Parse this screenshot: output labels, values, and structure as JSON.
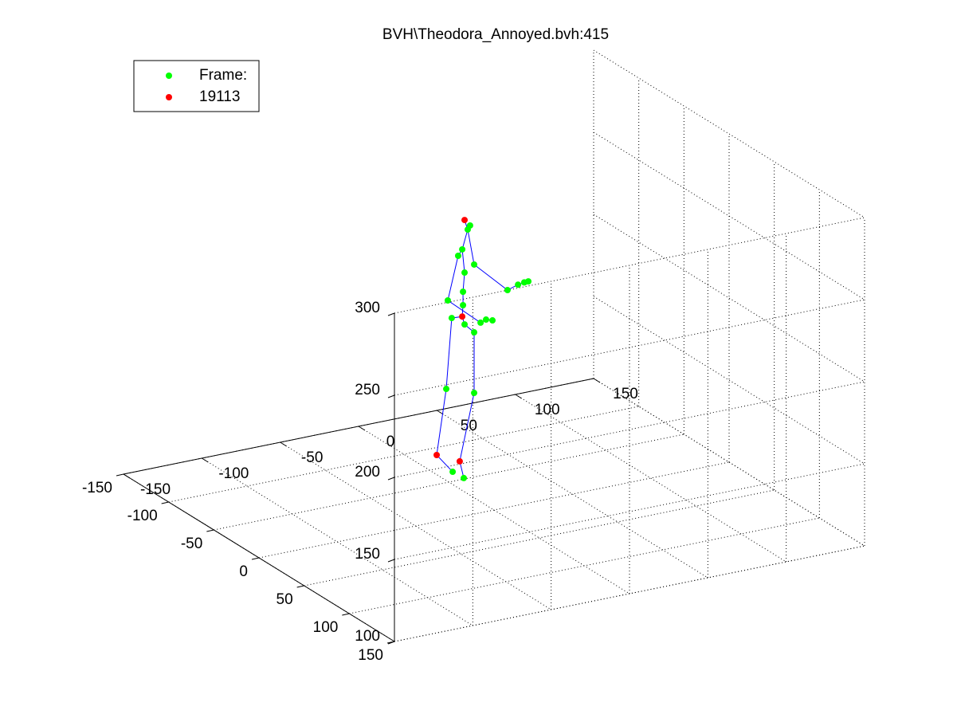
{
  "chart_data": {
    "type": "scatter3d",
    "title": "BVH\\Theodora_Annoyed.bvh:415",
    "xlim": [
      -150,
      150
    ],
    "ylim": [
      -150,
      150
    ],
    "zlim": [
      100,
      300
    ],
    "xticks": [
      -150,
      -100,
      -50,
      0,
      50,
      100,
      150
    ],
    "yticks": [
      -150,
      -100,
      -50,
      0,
      50,
      100,
      150
    ],
    "zticks": [
      100,
      150,
      200,
      250,
      300
    ],
    "grid": true,
    "legend": "top-left",
    "series": [
      {
        "name": "Frame:",
        "color": "#00ff00",
        "x": [
          -15.3,
          -16.8,
          -20.3,
          -22.9,
          -12.7,
          -18.8,
          -29.5,
          -19.8,
          -19.8,
          -27,
          -18.8,
          -12.7,
          -30.5,
          -12.7,
          -26.4,
          -19.3,
          8.6,
          15.3,
          19.3,
          21.9,
          -8.6,
          -5.1,
          -1.0
        ],
        "y": [
          0,
          0,
          0,
          0,
          0,
          0,
          0,
          0,
          0,
          0,
          0,
          0,
          0,
          0,
          0,
          0,
          0,
          0,
          0,
          0,
          0,
          0,
          0
        ],
        "z": [
          276.3,
          274.1,
          262.7,
          259.3,
          252.0,
          248.3,
          233.4,
          236.8,
          228.6,
          222.2,
          216.7,
          210.7,
          179.7,
          173.8,
          128.4,
          123.2,
          232.3,
          234.3,
          234.9,
          235.0,
          215.8,
          217.0,
          215.7
        ]
      },
      {
        "name": "19113",
        "color": "#ff0000",
        "x": [
          -18.8,
          -20.3,
          -36.6,
          -21.9
        ],
        "y": [
          0,
          0,
          0,
          0
        ],
        "z": [
          280.3,
          221.8,
          140.6,
          133.9
        ]
      },
      {
        "type": "line",
        "color": "#0000ff",
        "x": [
          -20.3,
          -19.8,
          -19.8,
          -18.8,
          -20.3,
          -16.8,
          -18.8,
          null,
          -16.8,
          -12.7,
          8.6,
          15.3,
          19.3,
          21.9,
          null,
          -20.3,
          -22.9,
          -29.5,
          -8.6,
          -5.1,
          -1.0,
          null,
          -20.3,
          -27,
          -30.5,
          -36.6,
          -26.4,
          null,
          -20.3,
          -18.8,
          -12.7,
          -12.7,
          -21.9,
          -19.3
        ],
        "y": [
          0,
          0,
          0,
          0,
          0,
          0,
          0,
          null,
          0,
          0,
          0,
          0,
          0,
          0,
          null,
          0,
          0,
          0,
          0,
          0,
          0,
          null,
          0,
          0,
          0,
          0,
          0,
          null,
          0,
          0,
          0,
          0,
          0,
          0
        ],
        "z": [
          221.8,
          228.6,
          236.8,
          248.3,
          262.7,
          274.1,
          280.3,
          null,
          274.1,
          252.0,
          232.3,
          234.3,
          234.9,
          235.0,
          null,
          262.7,
          259.3,
          233.4,
          215.8,
          217.0,
          215.7,
          null,
          221.8,
          222.2,
          179.7,
          140.6,
          128.4,
          null,
          221.8,
          216.7,
          210.7,
          173.8,
          133.9,
          123.2
        ]
      }
    ]
  }
}
